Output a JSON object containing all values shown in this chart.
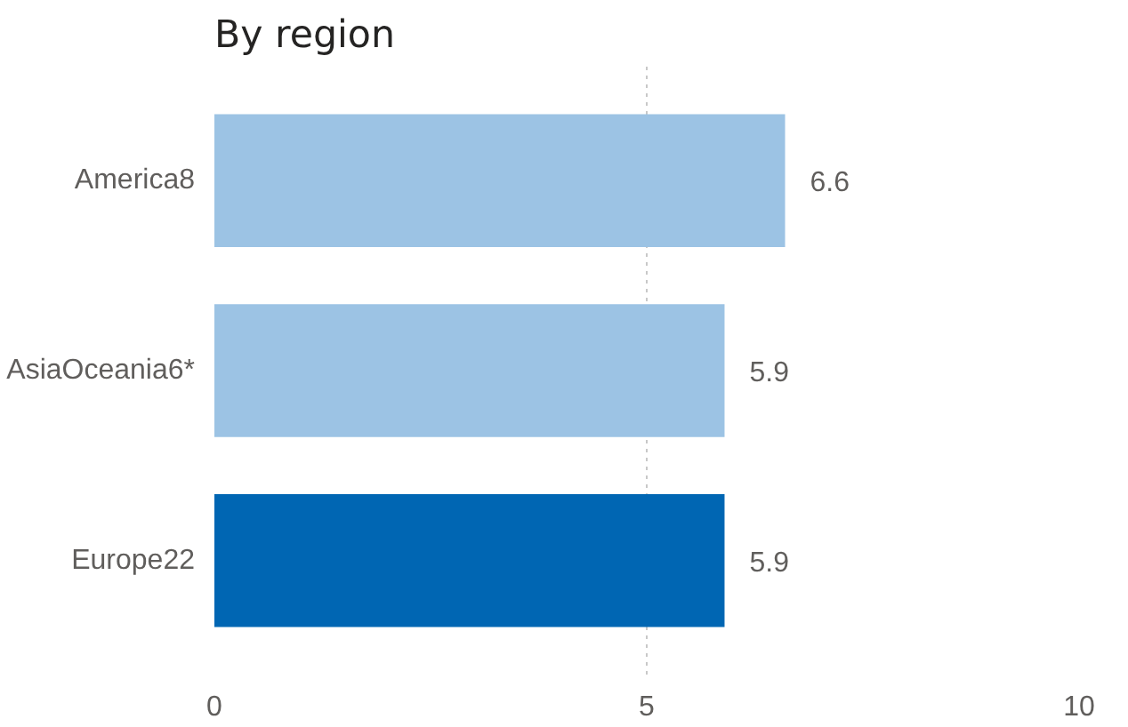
{
  "chart_data": {
    "type": "bar",
    "orientation": "horizontal",
    "title": "By region",
    "categories": [
      "America8",
      "AsiaOceania6*",
      "Europe22"
    ],
    "values": [
      6.6,
      5.9,
      5.9
    ],
    "colors": [
      "#9cc3e4",
      "#9cc3e4",
      "#0066b3"
    ],
    "data_labels": true,
    "xlim": [
      0,
      10
    ],
    "xticks": [
      0,
      5,
      10
    ],
    "grid": "x"
  }
}
